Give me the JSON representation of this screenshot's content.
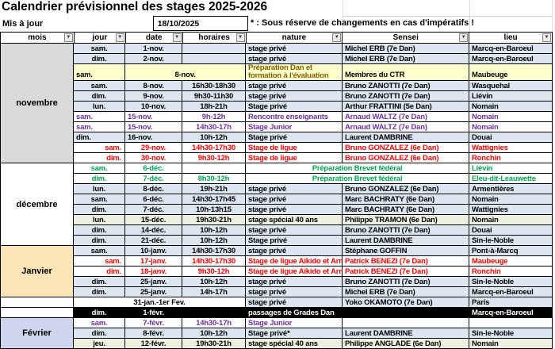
{
  "title": "Calendrier prévisionnel des stages 2025-2026",
  "updated_label": "Mis à jour",
  "updated_date": "18/10/2025",
  "note": "* : Sous réserve de changements en cas d'impératifs !",
  "header": {
    "cols": [
      "mois",
      "jour",
      "date",
      "horaires",
      "nature",
      "Sensei",
      "lieu"
    ]
  },
  "palette": {
    "row_blue": "#DCE6F1",
    "row_white": "#FFFFFF",
    "row_yellow": "#FFFFCC",
    "row_green": "#EBF1DE",
    "row_black": "#000000",
    "month_november": "#D9D9D9",
    "month_december": "#FFFFFF",
    "month_january": "#FBE5B6",
    "month_february": "#CDD6EC",
    "text_red": "#FF0000",
    "text_purple": "#7030A0",
    "text_green": "#00A550",
    "text_darkyellow": "#7F6000",
    "text_white": "#FFFFFF",
    "text_black": "#000000"
  },
  "months": [
    {
      "label": "novembre",
      "start": 0,
      "count": 11,
      "bg": "month_november"
    },
    {
      "label": "décembre",
      "start": 11,
      "count": 8,
      "bg": "month_december"
    },
    {
      "label": "Janvier",
      "start": 19,
      "count": 5,
      "bg": "month_january"
    },
    {
      "label": "",
      "start": 24,
      "count": 1,
      "bg": "month_december"
    },
    {
      "label": "",
      "start": 25,
      "count": 1,
      "bg": "month_december"
    },
    {
      "label": "Février",
      "start": 26,
      "count": 3,
      "bg": "month_february"
    }
  ],
  "rows": [
    {
      "jour": "sam.",
      "date": "1-nov.",
      "horaires": "",
      "nature": "stage privé",
      "sensei": "Michel ERB (7e Dan)",
      "lieu": "Marcq-en-Baroeul",
      "bg": "blue"
    },
    {
      "jour": "dim.",
      "date": "2-nov.",
      "horaires": "",
      "nature": "stage privé",
      "sensei": "Michel ERB (7e Dan)",
      "lieu": "Marcq-en-Baroeul",
      "bg": "blue"
    },
    {
      "jour": "sam.",
      "date": "8-nov.",
      "horaires": "",
      "nature": "Préparation Dan et formation à l'évaluation",
      "sensei": "Membres du CTR",
      "lieu": "Maubeuge",
      "bg": "yellow",
      "tall": true,
      "merge": "date-horaires",
      "natureFg": "darkyellow",
      "jourAlign": "left",
      "vbottom": true
    },
    {
      "jour": "sam.",
      "date": "8-nov.",
      "horaires": "16h30-18h30",
      "nature": "stage privé",
      "sensei": "Bruno ZANOTTI (7e Dan)",
      "lieu": "Wasquehal",
      "bg": "blue"
    },
    {
      "jour": "dim.",
      "date": "9-nov.",
      "horaires": "9h30-11h30",
      "nature": "stage privé",
      "sensei": "Bruno ZANOTTI (7e Dan)",
      "lieu": "Liévin",
      "bg": "blue"
    },
    {
      "jour": "lun.",
      "date": "10-nov.",
      "horaires": "18h-21h",
      "nature": "Stage privé",
      "sensei": "Arthur FRATTINI (5e Dan)",
      "lieu": "Nomain",
      "bg": "blue"
    },
    {
      "jour": "sam.",
      "date": "15-nov.",
      "horaires": "9h-12h",
      "nature": "Rencontre enseignants",
      "sensei": "Arnaud WALTZ (7e Dan)",
      "lieu": "Nomain",
      "bg": "white",
      "fg": "purple",
      "jourAlign": "left",
      "dateAlign": "left"
    },
    {
      "jour": "sam.",
      "date": "15-nov.",
      "horaires": "14h30-17h",
      "nature": "Stage Junior",
      "sensei": "Arnaud WALTZ (7e Dan)",
      "lieu": "Nomain",
      "bg": "white",
      "fg": "purple",
      "jourAlign": "left",
      "dateAlign": "left"
    },
    {
      "jour": "dim.",
      "date": "16-nov.",
      "horaires": "10h-12h",
      "nature": "Stage privé",
      "sensei": "Laurent DAMBRINE",
      "lieu": "Douai",
      "bg": "blue",
      "jourAlign": "left",
      "dateAlign": "left"
    },
    {
      "jour": "sam.",
      "date": "29-nov.",
      "horaires": "14h30-17h30",
      "nature": "Stage de ligue",
      "sensei": "Bruno GONZALEZ (6e Dan)",
      "lieu": "Wattignies",
      "bg": "white",
      "fg": "red",
      "jourAlign": "right"
    },
    {
      "jour": "dim.",
      "date": "30-nov.",
      "horaires": "9h30-12h",
      "nature": "Stage de ligue",
      "sensei": "Bruno GONZALEZ (6e Dan)",
      "lieu": "Ronchin",
      "bg": "white",
      "fg": "red",
      "jourAlign": "right"
    },
    {
      "jour": "sam.",
      "date": "6-déc.",
      "horaires": "",
      "nature": "Préparation Brevet fédéral",
      "sensei": "",
      "lieu": "Liévin",
      "bg": "white",
      "fg": "green",
      "merge": "nature-sensei"
    },
    {
      "jour": "dim.",
      "date": "7-déc.",
      "horaires": "8h30-12h",
      "nature": "Préparation Brevet fédéral",
      "sensei": "",
      "lieu": "Eleu-dit-Leauwette",
      "bg": "white",
      "fg": "green",
      "merge": "nature-sensei"
    },
    {
      "jour": "lun.",
      "date": "8-déc.",
      "horaires": "19h-21h",
      "nature": "stage privé",
      "sensei": "Bruno GONZALEZ (6e Dan)",
      "lieu": "Armentières",
      "bg": "blue"
    },
    {
      "jour": "sam.",
      "date": "6-déc.",
      "horaires": "14h30-17h45",
      "nature": "stage privé",
      "sensei": "Marc BACHRATY (6e Dan)",
      "lieu": "Nomain",
      "bg": "blue"
    },
    {
      "jour": "dim.",
      "date": "7-déc.",
      "horaires": "10h-13h15",
      "nature": "stage privé",
      "sensei": "Marc BACHRATY (6e Dan)",
      "lieu": "Wattignies",
      "bg": "blue"
    },
    {
      "jour": "lun.",
      "date": "15-déc.",
      "horaires": "19h30-21h",
      "nature": "stage spécial 40 ans",
      "sensei": "Philippe TRAMON (6e Dan)",
      "lieu": "Nomain",
      "bg": "green"
    },
    {
      "jour": "dim.",
      "date": "14-déc.",
      "horaires": "10h-12h",
      "nature": "stage privé",
      "sensei": "Bruno ZANOTTI (7e Dan)",
      "lieu": "Douai",
      "bg": "blue"
    },
    {
      "jour": "dim.",
      "date": "21-déc.",
      "horaires": "10h-12h",
      "nature": "Stage privé",
      "sensei": "Laurent DAMBRINE",
      "lieu": "Sin-le-Noble",
      "bg": "blue"
    },
    {
      "jour": "sam.",
      "date": "10-janv.",
      "horaires": "14h30-17h30",
      "nature": "stage privé",
      "sensei": "Stéphane GOFFIN",
      "lieu": "Pont-à-Marcq",
      "bg": "blue"
    },
    {
      "jour": "sam.",
      "date": "17-janv.",
      "horaires": "14h30-17h30",
      "nature": "Stage de ligue Aïkido et Armes",
      "sensei": "Patrick BENEZI (7e Dan)",
      "lieu": "Maubeuge",
      "bg": "white",
      "fg": "red",
      "jourAlign": "right"
    },
    {
      "jour": "dim.",
      "date": "18-janv.",
      "horaires": "9h30-12h",
      "nature": "Stage de ligue Aïkido et Armes",
      "sensei": "Patrick BENEZI (7e Dan)",
      "lieu": "Ronchin",
      "bg": "white",
      "fg": "red",
      "jourAlign": "right"
    },
    {
      "jour": "dim.",
      "date": "25-janv.",
      "horaires": "10h-12h",
      "nature": "stage privé",
      "sensei": "Bruno ZANOTTI (7e Dan)",
      "lieu": "Sin-le-Noble",
      "bg": "blue"
    },
    {
      "jour": "dim.",
      "date": "25-janv.",
      "horaires": "14h-17h",
      "nature": "stage privé",
      "sensei": "Michel ERB (7e Dan)",
      "lieu": "Marcq-en-Baroeul",
      "bg": "blue"
    },
    {
      "jour": "31-jan.-1er Fev.",
      "date": "",
      "horaires": "",
      "nature": "stage privé",
      "sensei": "Yoko OKAMOTO (7e Dan)",
      "lieu": "Paris",
      "bg": "blue",
      "merge": "jour-horaires",
      "mergeBg": "white"
    },
    {
      "jour": "dim.",
      "date": "1-févr.",
      "horaires": "",
      "nature": "passages de Grades Dan",
      "sensei": "",
      "lieu": "Marcq-en-Baroeul",
      "bg": "black",
      "fg": "white",
      "merge": "nature-sensei",
      "mergeAlign": "left"
    },
    {
      "jour": "sam.",
      "date": "7-févr.",
      "horaires": "14h30-17h",
      "nature": "Stage Junior",
      "sensei": "",
      "lieu": "",
      "bg": "white",
      "fg": "purple"
    },
    {
      "jour": "dim.",
      "date": "8-févr.",
      "horaires": "10h-12h",
      "nature": "Stage privé*",
      "sensei": "Laurent DAMBRINE",
      "lieu": "Sin-le-Noble",
      "bg": "blue"
    },
    {
      "jour": "jeu.",
      "date": "12-févr.",
      "horaires": "19h30-21h",
      "nature": "stage spécial 40 ans",
      "sensei": "Philippe ANGLADE (6e Dan)",
      "lieu": "Nomain",
      "bg": "green"
    }
  ]
}
